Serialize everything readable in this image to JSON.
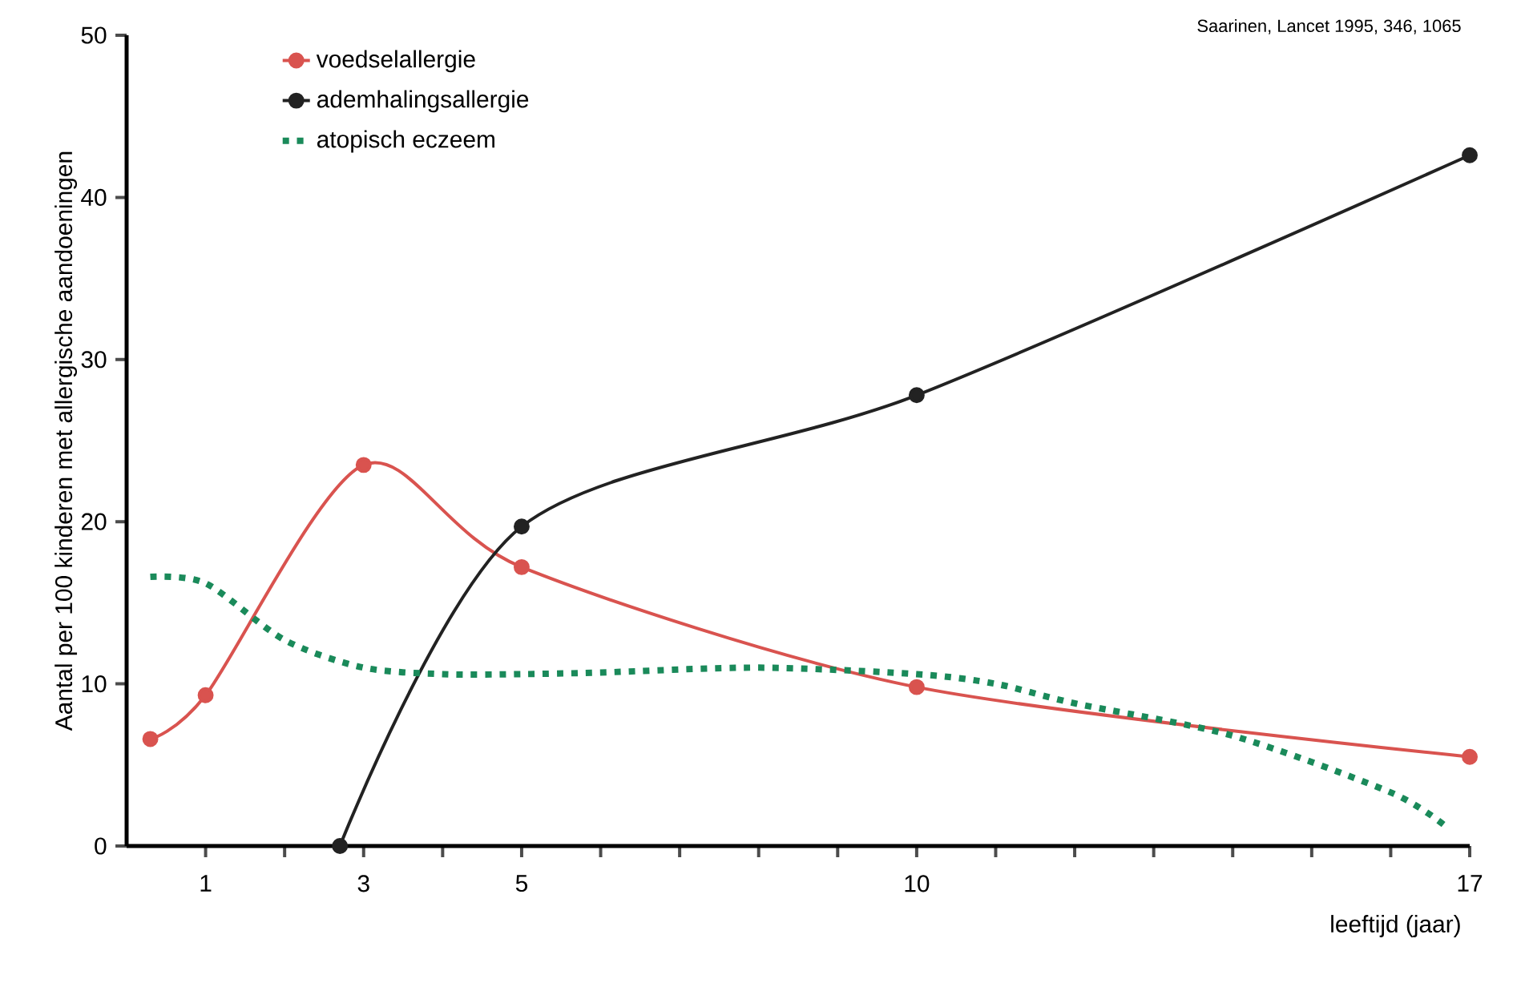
{
  "chart_data": {
    "type": "line",
    "xlabel": "leeftijd (jaar)",
    "ylabel": "Aantal per 100 kinderen met allergische aandoeningen",
    "annotations": [
      "Saarinen, Lancet 1995, 346, 1065"
    ],
    "xlim": [
      0,
      17
    ],
    "ylim": [
      0,
      50
    ],
    "xticks": [
      1,
      {
        "value": 2,
        "label": null
      },
      3,
      {
        "value": 4,
        "label": null
      },
      5,
      {
        "value": 6,
        "label": null
      },
      {
        "value": 7,
        "label": null
      },
      {
        "value": 8,
        "label": null
      },
      {
        "value": 9,
        "label": null
      },
      10,
      {
        "value": 11,
        "label": null
      },
      {
        "value": 12,
        "label": null
      },
      {
        "value": 13,
        "label": null
      },
      {
        "value": 14,
        "label": null
      },
      {
        "value": 15,
        "label": null
      },
      {
        "value": 16,
        "label": null
      },
      17
    ],
    "yticks": [
      0,
      10,
      20,
      30,
      40,
      50
    ],
    "legend": "top left",
    "grid": false,
    "series": [
      {
        "name": "voedselallergie",
        "color": "#d9534f",
        "marker": "circle",
        "line_style": "solid",
        "x": [
          0.3,
          1,
          3,
          5,
          10,
          17
        ],
        "values": [
          6.6,
          9.3,
          23.5,
          17.2,
          9.8,
          5.5
        ]
      },
      {
        "name": "ademhalingsallergie",
        "color": "#222222",
        "marker": "circle",
        "line_style": "solid",
        "x": [
          2.7,
          5,
          10,
          17
        ],
        "values": [
          0,
          19.7,
          27.8,
          42.6
        ]
      },
      {
        "name": "atopisch eczeem",
        "color": "#1a8a5a",
        "marker": "none",
        "line_style": "dashed",
        "x": [
          0.3,
          1,
          2,
          3,
          4,
          5,
          6,
          8,
          10,
          11,
          12,
          14,
          16,
          16.7
        ],
        "values": [
          16.6,
          16.2,
          12.7,
          11,
          10.6,
          10.6,
          10.7,
          11,
          10.6,
          10,
          8.8,
          6.8,
          3.3,
          1.2
        ]
      }
    ]
  }
}
